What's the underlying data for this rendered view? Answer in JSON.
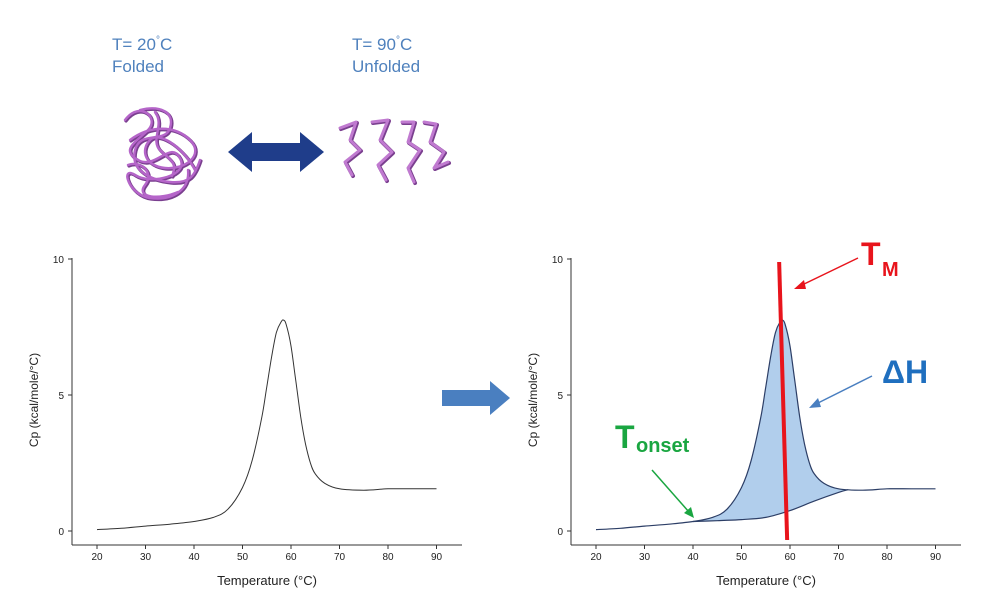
{
  "states": {
    "folded": {
      "temp_prefix": "T= 20",
      "degree": "°",
      "temp_suffix": "C",
      "label": "Folded"
    },
    "unfolded": {
      "temp_prefix": "T= 90",
      "degree": "°",
      "temp_suffix": "C",
      "label": "Unfolded"
    }
  },
  "colors": {
    "protein": "#b565c9",
    "double_arrow": "#1f3d8a",
    "process_arrow": "#4a7fc0",
    "state_text": "#4f81bd",
    "tm": "#e8141c",
    "tonset": "#1aa641",
    "delta_h": "#1f6fbf",
    "fill": "#a9c9ea"
  },
  "annotations": {
    "tm": {
      "main": "T",
      "sub": "M"
    },
    "tonset": {
      "main": "T",
      "sub": "onset"
    },
    "delta_h": "ΔH"
  },
  "chart_data": [
    {
      "type": "line",
      "xlabel": "Temperature (°C)",
      "ylabel": "Cp (kcal/mole/°C)",
      "xlim": [
        15,
        95
      ],
      "ylim": [
        -1,
        10
      ],
      "xticks": [
        20,
        30,
        40,
        50,
        60,
        70,
        80,
        90
      ],
      "yticks": [
        0,
        5,
        10
      ],
      "series": [
        {
          "x": [
            20,
            25,
            30,
            35,
            40,
            44,
            47,
            50,
            52,
            54,
            55,
            56,
            57,
            58,
            58.5,
            59,
            60,
            61,
            62,
            63,
            64,
            65,
            67,
            70,
            75,
            80,
            85,
            90
          ],
          "y": [
            0.05,
            0.1,
            0.18,
            0.25,
            0.35,
            0.5,
            0.8,
            1.6,
            2.6,
            4.2,
            5.3,
            6.4,
            7.3,
            7.7,
            7.75,
            7.6,
            6.8,
            5.5,
            4.2,
            3.2,
            2.5,
            2.1,
            1.75,
            1.55,
            1.5,
            1.55,
            1.55,
            1.55
          ]
        }
      ]
    },
    {
      "type": "area",
      "xlabel": "Temperature (°C)",
      "ylabel": "Cp (kcal/mole/°C)",
      "xlim": [
        15,
        95
      ],
      "ylim": [
        -1,
        10
      ],
      "xticks": [
        20,
        30,
        40,
        50,
        60,
        70,
        80,
        90
      ],
      "yticks": [
        0,
        5,
        10
      ],
      "tm": 59,
      "tonset": 40,
      "series": [
        {
          "x": [
            20,
            25,
            30,
            35,
            40,
            44,
            47,
            50,
            52,
            54,
            55,
            56,
            57,
            58,
            58.5,
            59,
            60,
            61,
            62,
            63,
            64,
            65,
            67,
            70,
            75,
            80,
            85,
            90
          ],
          "y": [
            0.05,
            0.1,
            0.18,
            0.25,
            0.35,
            0.5,
            0.8,
            1.6,
            2.6,
            4.2,
            5.3,
            6.4,
            7.3,
            7.7,
            7.75,
            7.6,
            6.8,
            5.5,
            4.2,
            3.2,
            2.5,
            2.1,
            1.75,
            1.55,
            1.5,
            1.55,
            1.55,
            1.55
          ]
        }
      ],
      "baseline": {
        "x": [
          40,
          45,
          50,
          55,
          60,
          65,
          70,
          72
        ],
        "y": [
          0.35,
          0.38,
          0.42,
          0.5,
          0.75,
          1.1,
          1.42,
          1.52
        ]
      }
    }
  ]
}
